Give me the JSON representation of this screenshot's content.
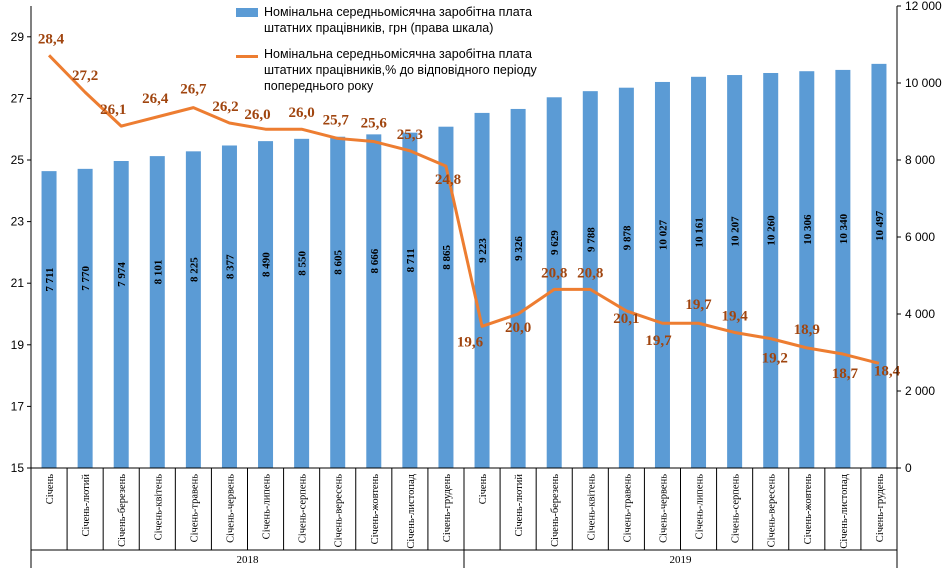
{
  "chart_data": {
    "type": "bar+line",
    "categories": [
      "Січень",
      "Січень-лютий",
      "Січень-березень",
      "Січень-квітень",
      "Січень-травень",
      "Січень-червень",
      "Січень-липень",
      "Січень-серпень",
      "Січень-вересень",
      "Січень-жовтень",
      "Січень-листопад",
      "Січень-грудень",
      "Січень",
      "Січень-лютий",
      "Січень-березень",
      "Січень-квітень",
      "Січень-травень",
      "Січень-червень",
      "Січень-липень",
      "Січень-серпень",
      "Січень-вересень",
      "Січень-жовтень",
      "Січень-листопад",
      "Січень-грудень"
    ],
    "groups": [
      {
        "label": "2018",
        "start": 0,
        "end": 11
      },
      {
        "label": "2019",
        "start": 12,
        "end": 23
      }
    ],
    "series": [
      {
        "name": "Номінальна середньомісячна заробітна плата штатних працівників, грн (права шкала)",
        "kind": "bar",
        "axis": "right",
        "values": [
          7711,
          7770,
          7974,
          8101,
          8225,
          8377,
          8490,
          8550,
          8605,
          8666,
          8711,
          8865,
          9223,
          9326,
          9629,
          9788,
          9878,
          10027,
          10161,
          10207,
          10260,
          10306,
          10340,
          10497
        ],
        "labels": [
          "7 711",
          "7 770",
          "7 974",
          "8 101",
          "8 225",
          "8 377",
          "8 490",
          "8 550",
          "8 605",
          "8 666",
          "8 711",
          "8 865",
          "9 223",
          "9 326",
          "9 629",
          "9 788",
          "9 878",
          "10 027",
          "10 161",
          "10 207",
          "10 260",
          "10 306",
          "10 340",
          "10 497"
        ]
      },
      {
        "name": "Номінальна середньомісячна заробітна плата штатних працівників,% до відповідного періоду попереднього року",
        "kind": "line",
        "axis": "left",
        "values": [
          28.4,
          27.2,
          26.1,
          26.4,
          26.7,
          26.2,
          26.0,
          26.0,
          25.7,
          25.6,
          25.3,
          24.8,
          19.6,
          20.0,
          20.8,
          20.8,
          20.1,
          19.7,
          19.7,
          19.4,
          19.2,
          18.9,
          18.7,
          18.4
        ],
        "labels": [
          "28,4",
          "27,2",
          "26,1",
          "26,4",
          "26,7",
          "26,2",
          "26,0",
          "26,0",
          "25,7",
          "25,6",
          "25,3",
          "24,8",
          "19,6",
          "20,0",
          "20,8",
          "20,8",
          "20,1",
          "19,7",
          "19,7",
          "19,4",
          "19,2",
          "18,9",
          "18,7",
          "18,4"
        ]
      }
    ],
    "left_axis": {
      "min": 15,
      "max": 30,
      "ticks": [
        15,
        17,
        19,
        21,
        23,
        25,
        27,
        29
      ]
    },
    "right_axis": {
      "min": 0,
      "max": 12000,
      "ticks": [
        0,
        2000,
        4000,
        6000,
        8000,
        10000,
        12000
      ],
      "tick_labels": [
        "0",
        "2 000",
        "4 000",
        "6 000",
        "8 000",
        "10 000",
        "12 000"
      ]
    },
    "legend_placement": "top",
    "colors": {
      "bar": "#5b9bd5",
      "line": "#ed7d31",
      "line_label": "#a0450f",
      "axis": "#000000"
    }
  }
}
